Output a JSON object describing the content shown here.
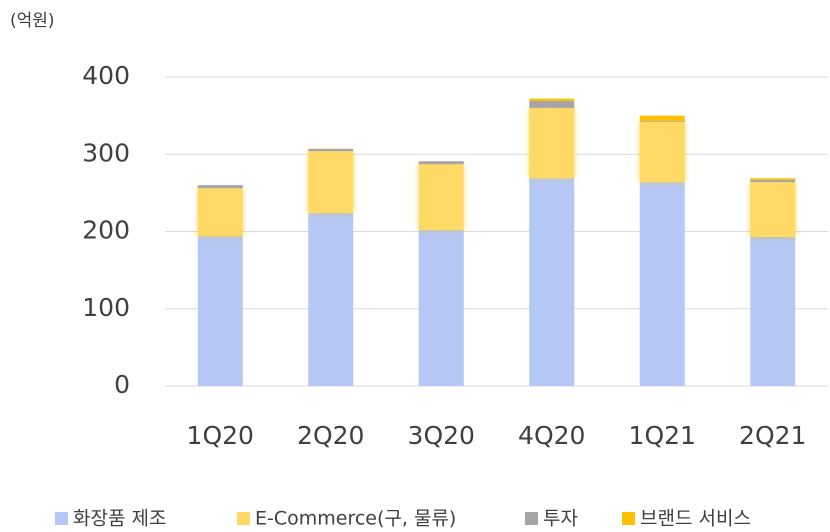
{
  "chart_data": {
    "type": "stacked_bar",
    "unit_label": "(억원)",
    "categories": [
      "1Q20",
      "2Q20",
      "3Q20",
      "4Q20",
      "1Q21",
      "2Q21"
    ],
    "series": [
      {
        "name": "화장품 제조",
        "color": "#b4c7f5",
        "values": [
          194,
          224,
          202,
          269,
          264,
          193
        ]
      },
      {
        "name": "E-Commerce(구, 물류)",
        "color": "#ffd966",
        "values": [
          62,
          80,
          85,
          91,
          78,
          71
        ]
      },
      {
        "name": "투자",
        "color": "#a5a5a5",
        "values": [
          4,
          3,
          4,
          9,
          1,
          3
        ]
      },
      {
        "name": "브랜드 서비스",
        "color": "#ffc000",
        "values": [
          0,
          0,
          0,
          3,
          7,
          2
        ]
      }
    ],
    "ylim": [
      0,
      400
    ],
    "yticks": [
      0,
      100,
      200,
      300,
      400
    ],
    "grid": true,
    "legend": "bottom"
  }
}
